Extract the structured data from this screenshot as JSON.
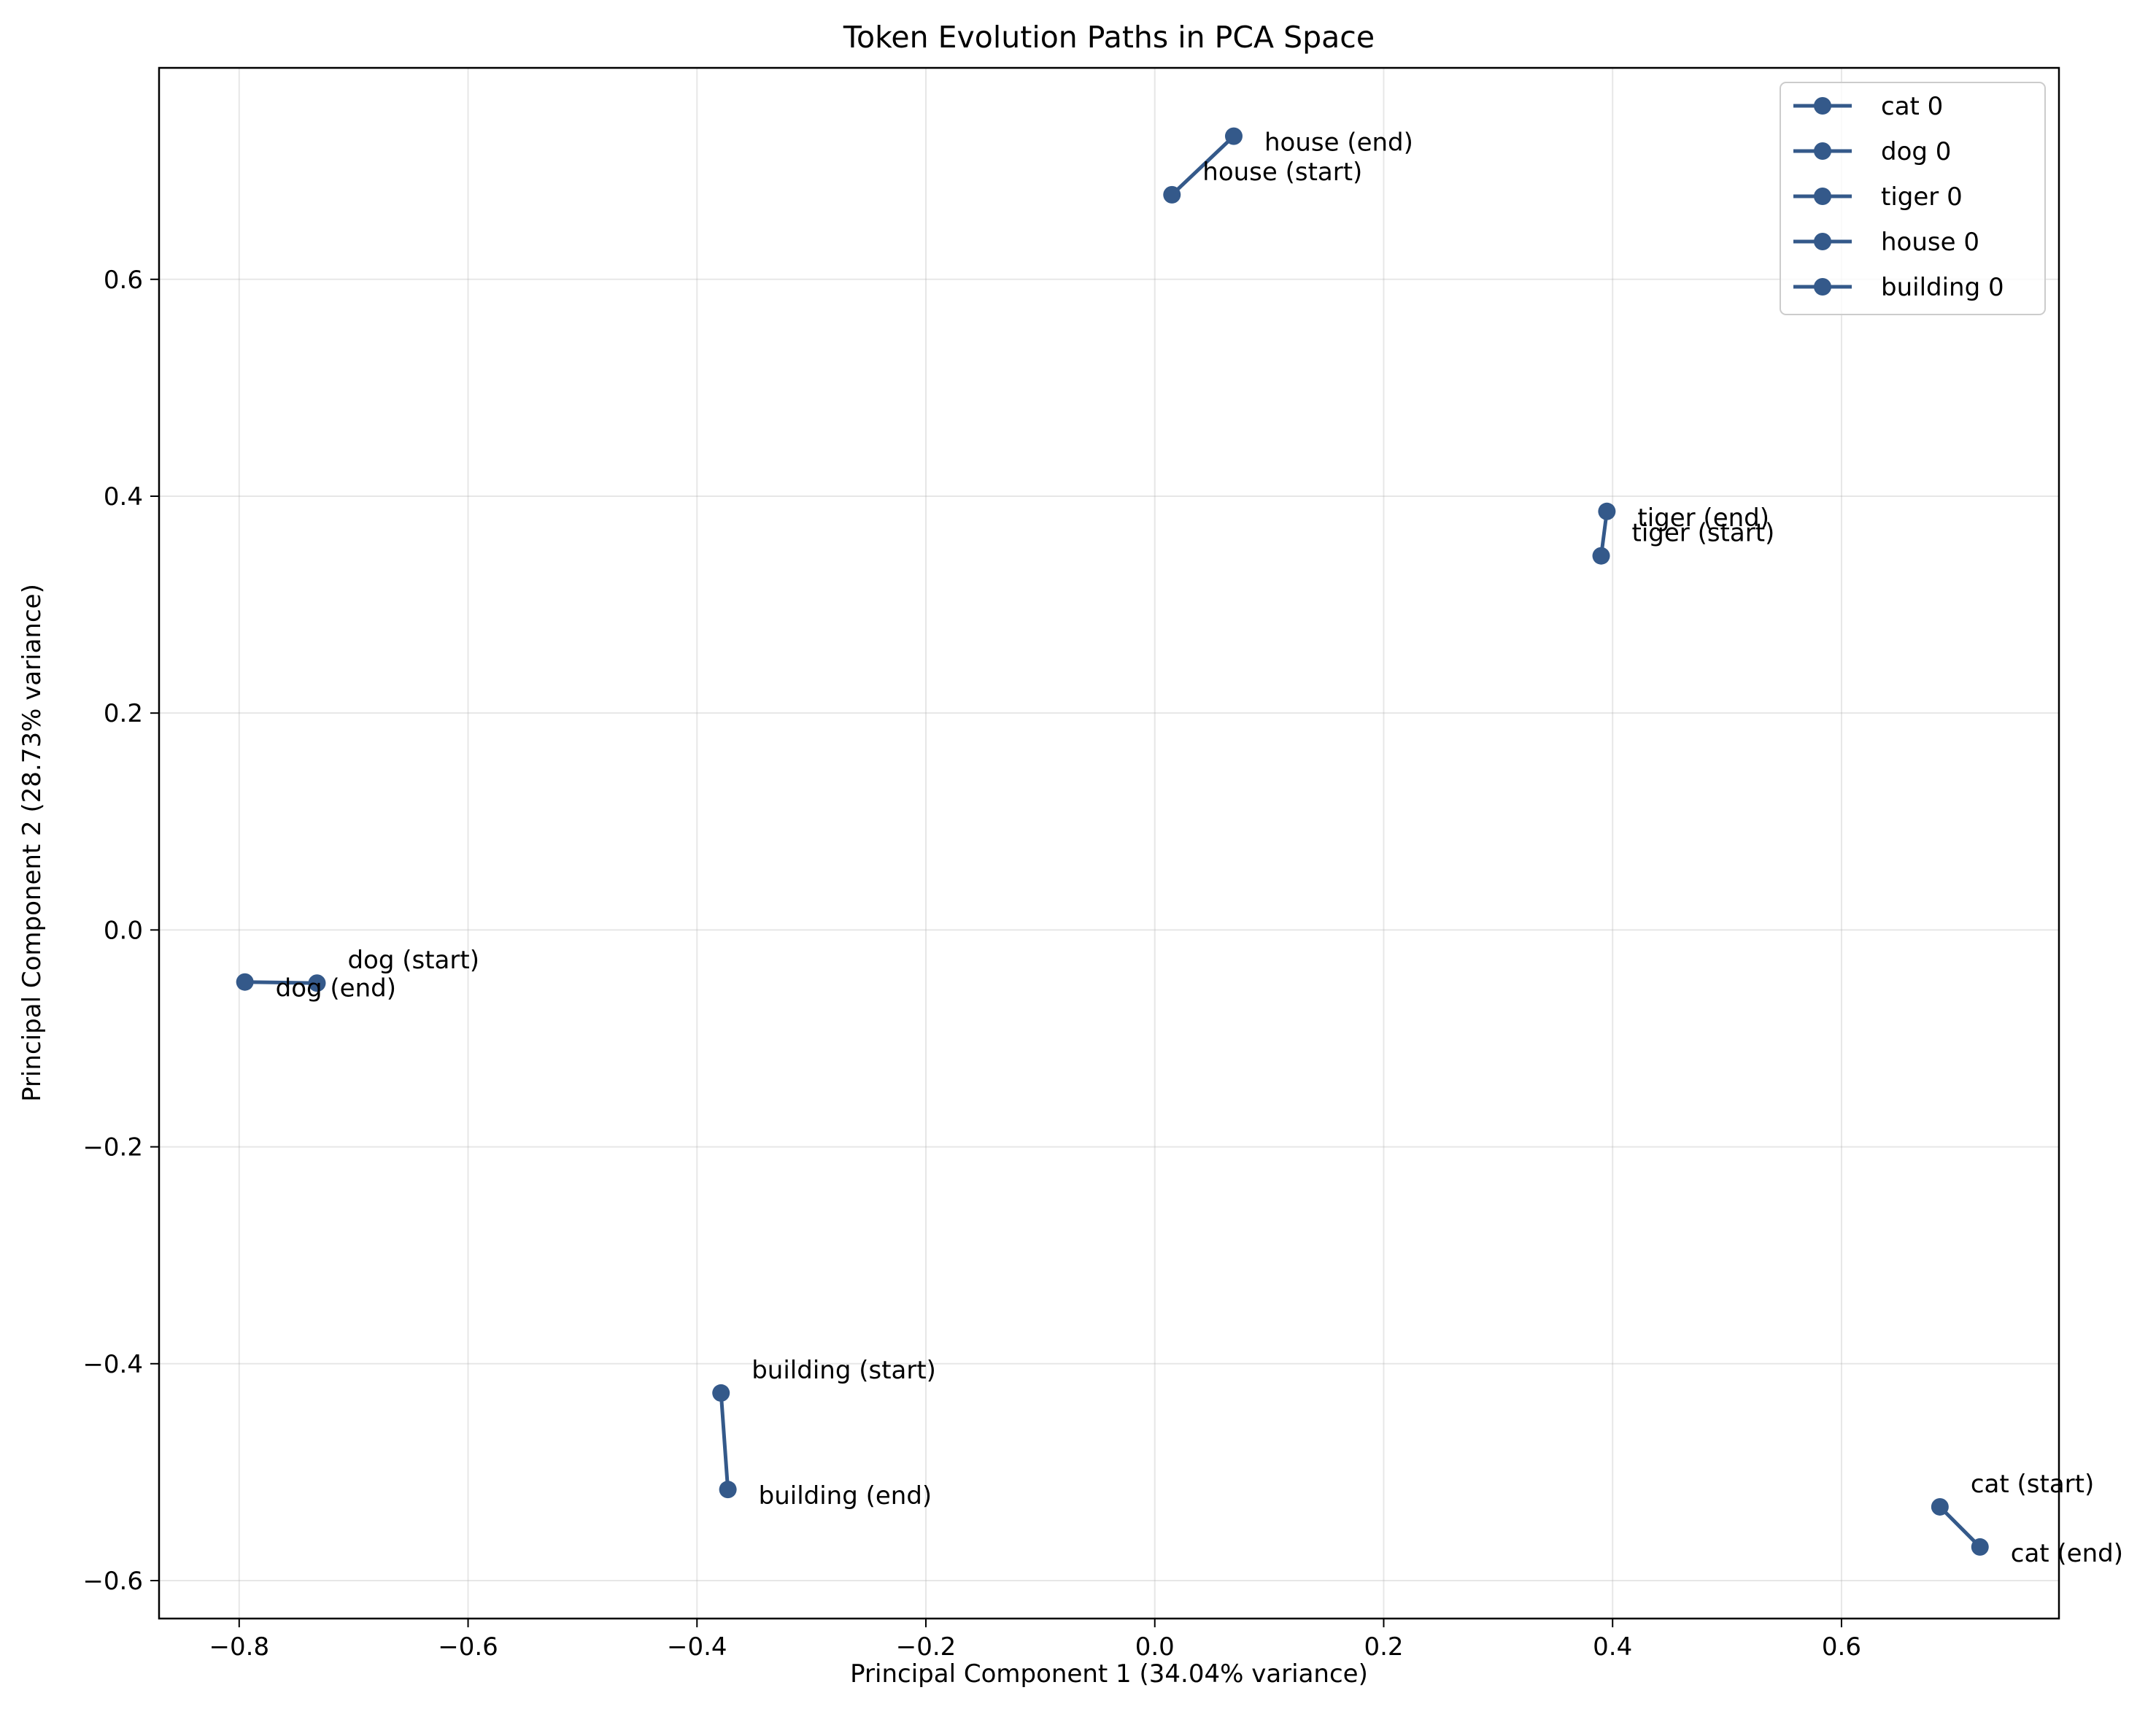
{
  "chart_data": {
    "type": "line",
    "title": "Token Evolution Paths in PCA Space",
    "xlabel": "Principal Component 1 (34.04% variance)",
    "ylabel": "Principal Component 2 (28.73% variance)",
    "xlim": [
      -0.87,
      0.79
    ],
    "ylim": [
      -0.635,
      0.795
    ],
    "xticks": [
      -0.8,
      -0.6,
      -0.4,
      -0.2,
      0.0,
      0.2,
      0.4,
      0.6
    ],
    "xtick_labels": [
      "−0.8",
      "−0.6",
      "−0.4",
      "−0.2",
      "0.0",
      "0.2",
      "0.4",
      "0.6"
    ],
    "yticks": [
      -0.6,
      -0.4,
      -0.2,
      0.0,
      0.2,
      0.4,
      0.6
    ],
    "ytick_labels": [
      "−0.6",
      "−0.4",
      "−0.2",
      "0.0",
      "0.2",
      "0.4",
      "0.6"
    ],
    "grid": true,
    "legend_position": "top-right",
    "series_color": "#34598a",
    "series": [
      {
        "name": "cat 0",
        "points": [
          [
            0.686,
            -0.532
          ],
          [
            0.721,
            -0.569
          ]
        ],
        "start_label": "cat (start)",
        "end_label": "cat (end)"
      },
      {
        "name": "dog 0",
        "points": [
          [
            -0.732,
            -0.049
          ],
          [
            -0.795,
            -0.048
          ]
        ],
        "start_label": "dog (start)",
        "end_label": "dog (end)"
      },
      {
        "name": "tiger 0",
        "points": [
          [
            0.39,
            0.345
          ],
          [
            0.395,
            0.386
          ]
        ],
        "start_label": "tiger (start)",
        "end_label": "tiger (end)"
      },
      {
        "name": "house 0",
        "points": [
          [
            0.015,
            0.678
          ],
          [
            0.069,
            0.732
          ]
        ],
        "start_label": "house (start)",
        "end_label": "house (end)"
      },
      {
        "name": "building 0",
        "points": [
          [
            -0.379,
            -0.427
          ],
          [
            -0.373,
            -0.516
          ]
        ],
        "start_label": "building (start)",
        "end_label": "building (end)"
      }
    ]
  }
}
